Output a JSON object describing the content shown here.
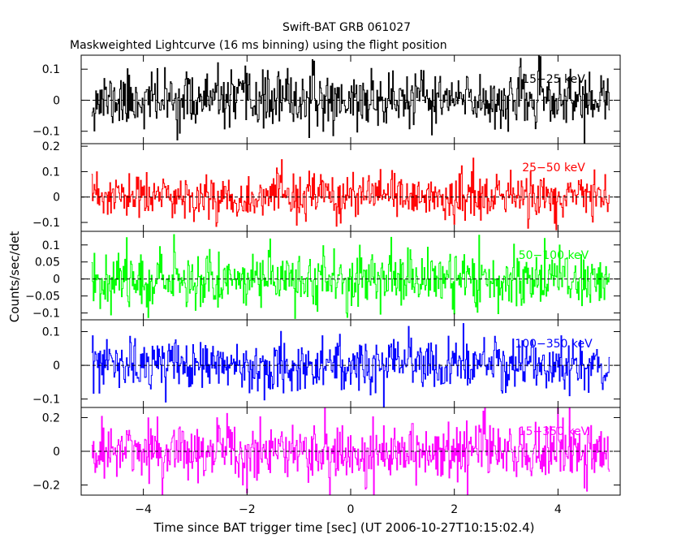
{
  "chart_data": {
    "type": "line",
    "title": "Swift-BAT GRB 061027",
    "subtitle": "Maskweighted Lightcurve (16 ms binning) using the flight position",
    "xlabel": "Time since BAT trigger time [sec] (UT 2006-10-27T10:15:02.4)",
    "ylabel": "Counts/sec/det",
    "xlim": [
      -5.2,
      5.2
    ],
    "x_range_data": [
      -5.0,
      5.0
    ],
    "bin_width_sec": 0.016,
    "xticks": [
      -4,
      -2,
      0,
      2,
      4
    ],
    "xtick_labels": [
      "−4",
      "−2",
      "0",
      "2",
      "4"
    ],
    "panels": [
      {
        "name": "15-25 keV",
        "label": "15−25 keV",
        "color": "#000000",
        "ylim": [
          -0.14,
          0.145
        ],
        "yticks": [
          -0.1,
          0,
          0.1
        ],
        "ytick_labels": [
          "−0.1",
          "0",
          "0.1"
        ],
        "noise_sigma": 0.045,
        "seed": 11
      },
      {
        "name": "25-50 keV",
        "label": "25−50 keV",
        "color": "#ff0000",
        "ylim": [
          -0.135,
          0.21
        ],
        "yticks": [
          -0.1,
          0,
          0.1,
          0.2
        ],
        "ytick_labels": [
          "−0.1",
          "0",
          "0.1",
          "0.2"
        ],
        "noise_sigma": 0.045,
        "seed": 23
      },
      {
        "name": "50-100 keV",
        "label": "50−100 keV",
        "color": "#00ff00",
        "ylim": [
          -0.12,
          0.14
        ],
        "yticks": [
          -0.1,
          -0.05,
          0,
          0.05,
          0.1
        ],
        "ytick_labels": [
          "−0.1",
          "−0.05",
          "0",
          "0.05",
          "0.1"
        ],
        "noise_sigma": 0.042,
        "seed": 37
      },
      {
        "name": "100-350 keV",
        "label": "100−350 keV",
        "color": "#0000ff",
        "ylim": [
          -0.125,
          0.135
        ],
        "yticks": [
          -0.1,
          0,
          0.1
        ],
        "ytick_labels": [
          "−0.1",
          "0",
          "0.1"
        ],
        "noise_sigma": 0.038,
        "seed": 53
      },
      {
        "name": "15-350 keV",
        "label": "15−350 keV",
        "color": "#ff00ff",
        "ylim": [
          -0.26,
          0.26
        ],
        "yticks": [
          -0.2,
          0,
          0.2
        ],
        "ytick_labels": [
          "−0.2",
          "0",
          "0.2"
        ],
        "noise_sigma": 0.09,
        "seed": 71
      }
    ]
  }
}
